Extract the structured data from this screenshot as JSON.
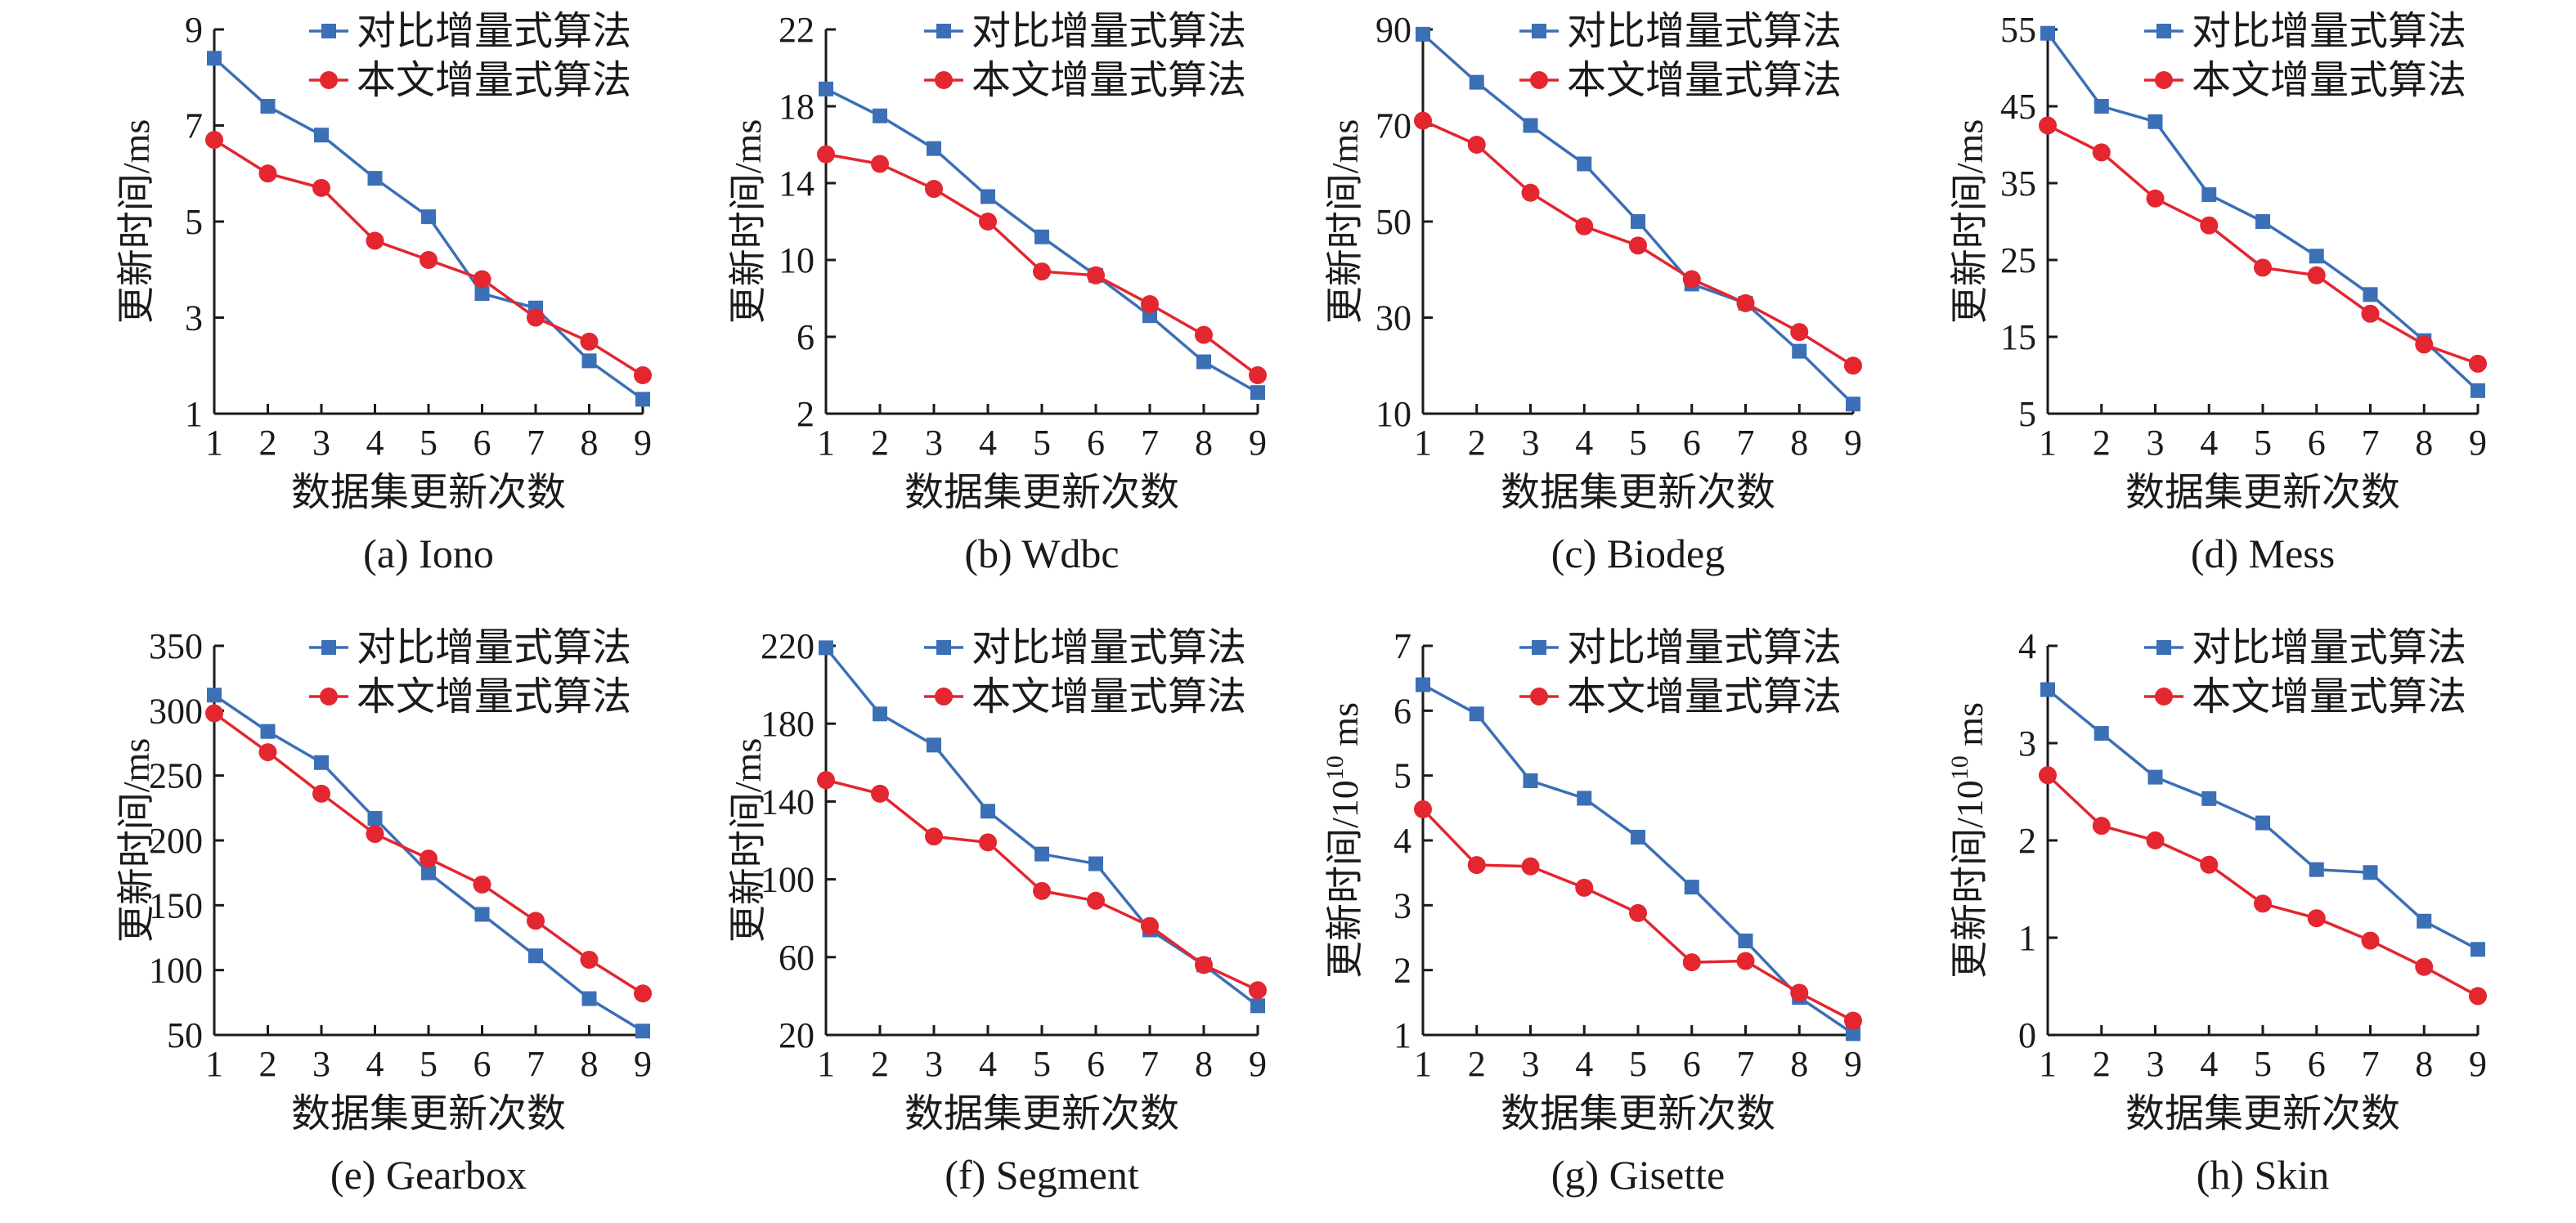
{
  "colors": {
    "baseline": "#3b6fb6",
    "proposed": "#e3262f"
  },
  "chart_data": [
    {
      "type": "line",
      "caption": "(a) Iono",
      "xlabel": "数据集更新次数",
      "ylabel": "更新时间/ms",
      "ylabel_sup": "",
      "ylabel_suffix": "",
      "categories": [
        "1",
        "2",
        "3",
        "4",
        "5",
        "6",
        "7",
        "8",
        "9"
      ],
      "ylim": [
        1,
        9
      ],
      "yticks": [
        1,
        3,
        5,
        7,
        9
      ],
      "series": [
        {
          "name": "对比增量式算法",
          "marker": "square",
          "values": [
            8.4,
            7.4,
            6.8,
            5.9,
            5.1,
            3.5,
            3.2,
            2.1,
            1.3
          ]
        },
        {
          "name": "本文增量式算法",
          "marker": "circle",
          "values": [
            6.7,
            6.0,
            5.7,
            4.6,
            4.2,
            3.8,
            3.0,
            2.5,
            1.8
          ]
        }
      ]
    },
    {
      "type": "line",
      "caption": "(b) Wdbc",
      "xlabel": "数据集更新次数",
      "ylabel": "更新时间/ms",
      "ylabel_sup": "",
      "ylabel_suffix": "",
      "categories": [
        "1",
        "2",
        "3",
        "4",
        "5",
        "6",
        "7",
        "8",
        "9"
      ],
      "ylim": [
        2,
        22
      ],
      "yticks": [
        2,
        6,
        10,
        14,
        18,
        22
      ],
      "series": [
        {
          "name": "对比增量式算法",
          "marker": "square",
          "values": [
            18.9,
            17.5,
            15.8,
            13.3,
            11.2,
            9.2,
            7.1,
            4.7,
            3.1
          ]
        },
        {
          "name": "本文增量式算法",
          "marker": "circle",
          "values": [
            15.5,
            15.0,
            13.7,
            12.0,
            9.4,
            9.2,
            7.7,
            6.1,
            4.0
          ]
        }
      ]
    },
    {
      "type": "line",
      "caption": "(c) Biodeg",
      "xlabel": "数据集更新次数",
      "ylabel": "更新时间/ms",
      "ylabel_sup": "",
      "ylabel_suffix": "",
      "categories": [
        "1",
        "2",
        "3",
        "4",
        "5",
        "6",
        "7",
        "8",
        "9"
      ],
      "ylim": [
        10,
        90
      ],
      "yticks": [
        10,
        30,
        50,
        70,
        90
      ],
      "series": [
        {
          "name": "对比增量式算法",
          "marker": "square",
          "values": [
            89,
            79,
            70,
            62,
            50,
            37,
            33,
            23,
            12
          ]
        },
        {
          "name": "本文增量式算法",
          "marker": "circle",
          "values": [
            71,
            66,
            56,
            49,
            45,
            38,
            33,
            27,
            20
          ]
        }
      ]
    },
    {
      "type": "line",
      "caption": "(d) Mess",
      "xlabel": "数据集更新次数",
      "ylabel": "更新时间/ms",
      "ylabel_sup": "",
      "ylabel_suffix": "",
      "categories": [
        "1",
        "2",
        "3",
        "4",
        "5",
        "6",
        "7",
        "8",
        "9"
      ],
      "ylim": [
        5,
        55
      ],
      "yticks": [
        5,
        15,
        25,
        35,
        45,
        55
      ],
      "series": [
        {
          "name": "对比增量式算法",
          "marker": "square",
          "values": [
            54.5,
            45,
            43,
            33.5,
            30,
            25.5,
            20.5,
            14.5,
            8
          ]
        },
        {
          "name": "本文增量式算法",
          "marker": "circle",
          "values": [
            42.5,
            39,
            33,
            29.5,
            24,
            23,
            18,
            14,
            11.5
          ]
        }
      ]
    },
    {
      "type": "line",
      "caption": "(e) Gearbox",
      "xlabel": "数据集更新次数",
      "ylabel": "更新时间/ms",
      "ylabel_sup": "",
      "ylabel_suffix": "",
      "categories": [
        "1",
        "2",
        "3",
        "4",
        "5",
        "6",
        "7",
        "8",
        "9"
      ],
      "ylim": [
        50,
        350
      ],
      "yticks": [
        50,
        100,
        150,
        200,
        250,
        300,
        350
      ],
      "series": [
        {
          "name": "对比增量式算法",
          "marker": "square",
          "values": [
            312,
            284,
            260,
            217,
            175,
            143,
            111,
            78,
            53
          ]
        },
        {
          "name": "本文增量式算法",
          "marker": "circle",
          "values": [
            298,
            268,
            236,
            205,
            186,
            166,
            138,
            108,
            82
          ]
        }
      ]
    },
    {
      "type": "line",
      "caption": "(f) Segment",
      "xlabel": "数据集更新次数",
      "ylabel": "更新时间/ms",
      "ylabel_sup": "",
      "ylabel_suffix": "",
      "categories": [
        "1",
        "2",
        "3",
        "4",
        "5",
        "6",
        "7",
        "8",
        "9"
      ],
      "ylim": [
        20,
        220
      ],
      "yticks": [
        20,
        60,
        100,
        140,
        180,
        220
      ],
      "series": [
        {
          "name": "对比增量式算法",
          "marker": "square",
          "values": [
            219,
            185,
            169,
            135,
            113,
            108,
            74,
            56,
            35
          ]
        },
        {
          "name": "本文增量式算法",
          "marker": "circle",
          "values": [
            151,
            144,
            122,
            119,
            94,
            89,
            76,
            56,
            43
          ]
        }
      ]
    },
    {
      "type": "line",
      "caption": "(g) Gisette",
      "xlabel": "数据集更新次数",
      "ylabel": "更新时间/10",
      "ylabel_sup": "10",
      "ylabel_suffix": " ms",
      "categories": [
        "1",
        "2",
        "3",
        "4",
        "5",
        "6",
        "7",
        "8",
        "9"
      ],
      "ylim": [
        1,
        7
      ],
      "yticks": [
        1,
        2,
        3,
        4,
        5,
        6,
        7
      ],
      "series": [
        {
          "name": "对比增量式算法",
          "marker": "square",
          "values": [
            6.4,
            5.95,
            4.92,
            4.65,
            4.05,
            3.28,
            2.45,
            1.58,
            1.02
          ]
        },
        {
          "name": "本文增量式算法",
          "marker": "circle",
          "values": [
            4.48,
            3.62,
            3.6,
            3.27,
            2.88,
            2.12,
            2.14,
            1.65,
            1.22
          ]
        }
      ]
    },
    {
      "type": "line",
      "caption": "(h) Skin",
      "xlabel": "数据集更新次数",
      "ylabel": "更新时间/10",
      "ylabel_sup": "10",
      "ylabel_suffix": " ms",
      "categories": [
        "1",
        "2",
        "3",
        "4",
        "5",
        "6",
        "7",
        "8",
        "9"
      ],
      "ylim": [
        0,
        4
      ],
      "yticks": [
        0,
        1,
        2,
        3,
        4
      ],
      "series": [
        {
          "name": "对比增量式算法",
          "marker": "square",
          "values": [
            3.55,
            3.1,
            2.65,
            2.43,
            2.18,
            1.7,
            1.67,
            1.17,
            0.88
          ]
        },
        {
          "name": "本文增量式算法",
          "marker": "circle",
          "values": [
            2.67,
            2.15,
            2.0,
            1.75,
            1.35,
            1.2,
            0.97,
            0.7,
            0.4
          ]
        }
      ]
    }
  ]
}
